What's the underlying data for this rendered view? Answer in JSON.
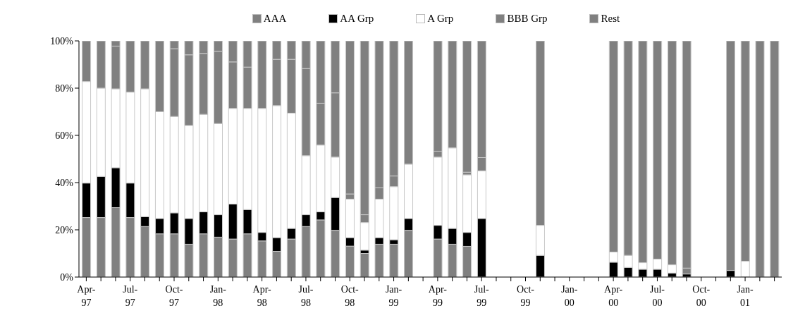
{
  "chart_data": {
    "type": "bar",
    "stacked": true,
    "legend": "top",
    "grid": false,
    "categories": [
      "Apr-97",
      null,
      null,
      "Jul-97",
      null,
      null,
      "Oct-97",
      null,
      null,
      "Jan-98",
      null,
      null,
      "Apr-98",
      null,
      null,
      "Jul-98",
      null,
      null,
      "Oct-98",
      null,
      null,
      "Jan-99",
      null,
      null,
      "Apr-99",
      null,
      null,
      "Jul-99",
      null,
      null,
      "Oct-99",
      null,
      null,
      "Jan-00",
      null,
      null,
      "Apr-00",
      null,
      null,
      "Jul-00",
      null,
      null,
      "Oct-00",
      null,
      null,
      "Jan-01",
      null,
      null
    ],
    "ylim": [
      0,
      100
    ],
    "yticks": [
      {
        "value": 0,
        "label": "0%"
      },
      {
        "value": 20,
        "label": "20%"
      },
      {
        "value": 40,
        "label": "40%"
      },
      {
        "value": 60,
        "label": "60%"
      },
      {
        "value": 80,
        "label": "80%"
      },
      {
        "value": 100,
        "label": "100%"
      }
    ],
    "series": [
      {
        "name": "AAA",
        "color": "#808080",
        "values": [
          25.2,
          25.2,
          29.4,
          25.2,
          21.4,
          18.3,
          18.3,
          13.9,
          18.3,
          16.9,
          16.1,
          18.3,
          15.3,
          10.9,
          16.1,
          21.4,
          24.2,
          19.8,
          13.1,
          10,
          13.9,
          13.9,
          19.8,
          null,
          16.1,
          13.9,
          13,
          0,
          null,
          null,
          null,
          0,
          null,
          null,
          null,
          null,
          0,
          0,
          0,
          0,
          0,
          0,
          null,
          null,
          0,
          0,
          0,
          0
        ]
      },
      {
        "name": "AA Grp",
        "color": "#000000",
        "values": [
          14.6,
          17.4,
          16.9,
          14.6,
          4.2,
          6.5,
          8.9,
          10.9,
          9.3,
          9.5,
          14.8,
          10.3,
          3.6,
          5.8,
          4.5,
          5,
          3.4,
          13.9,
          3.6,
          1.4,
          2.8,
          1.9,
          5,
          null,
          5.8,
          6.7,
          5.9,
          24.8,
          null,
          null,
          null,
          9.2,
          null,
          null,
          null,
          null,
          6.3,
          4.1,
          3.3,
          3.3,
          1.7,
          1.3,
          null,
          null,
          2.8,
          0,
          0,
          0
        ]
      },
      {
        "name": "A Grp",
        "color": "#ffffff",
        "values": [
          43,
          37.4,
          33.4,
          38.5,
          54.1,
          45.2,
          40.8,
          39.4,
          41.3,
          38.6,
          40.5,
          42.8,
          52.5,
          55.9,
          48.8,
          25,
          28.3,
          17.1,
          16.3,
          11.7,
          16.3,
          22.5,
          23,
          null,
          28.9,
          34.1,
          24.4,
          20.2,
          null,
          null,
          null,
          12.7,
          null,
          null,
          null,
          null,
          4.3,
          5.1,
          2.8,
          4.3,
          3.5,
          0,
          null,
          null,
          0,
          6.7,
          0,
          0
        ]
      },
      {
        "name": "BBB Grp",
        "color": "#808080",
        "values": [
          0,
          0,
          18.1,
          0,
          0,
          0,
          28.7,
          29.9,
          25.8,
          30.6,
          19.7,
          17.5,
          0,
          19.6,
          22.8,
          36.9,
          17.7,
          27.2,
          2.2,
          3.3,
          4.8,
          4.5,
          0,
          null,
          2.5,
          0,
          1.1,
          5.6,
          null,
          null,
          null,
          0,
          null,
          null,
          null,
          null,
          0,
          0,
          0,
          0,
          0,
          2.5,
          null,
          null,
          0,
          0,
          0,
          0
        ]
      },
      {
        "name": "Rest",
        "color": "#808080",
        "values": [
          17.2,
          20,
          2.2,
          21.7,
          20.3,
          30,
          3.3,
          5.9,
          5.3,
          4.4,
          8.9,
          11.1,
          28.6,
          7.8,
          7.8,
          11.7,
          26.4,
          22,
          64.8,
          73.6,
          62.2,
          57.2,
          52.2,
          null,
          46.7,
          45.3,
          55.6,
          49.4,
          null,
          null,
          null,
          78.1,
          null,
          null,
          null,
          null,
          89.4,
          90.8,
          93.9,
          92.4,
          94.8,
          96.2,
          null,
          null,
          97.2,
          93.3,
          100,
          100
        ]
      }
    ]
  }
}
